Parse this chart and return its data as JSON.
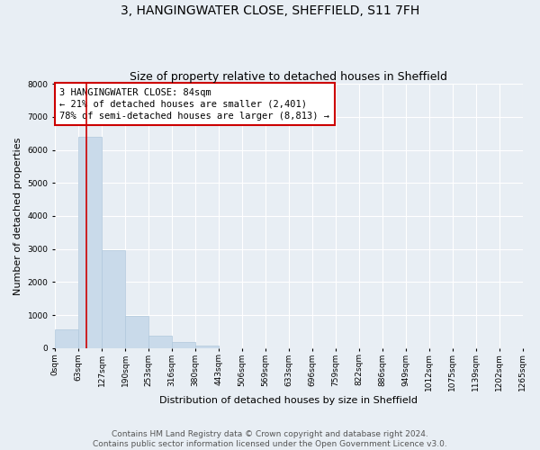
{
  "title": "3, HANGINGWATER CLOSE, SHEFFIELD, S11 7FH",
  "subtitle": "Size of property relative to detached houses in Sheffield",
  "xlabel": "Distribution of detached houses by size in Sheffield",
  "ylabel": "Number of detached properties",
  "bin_edges": [
    0,
    63,
    127,
    190,
    253,
    316,
    380,
    443,
    506,
    569,
    633,
    696,
    759,
    822,
    886,
    949,
    1012,
    1075,
    1139,
    1202,
    1265
  ],
  "bar_heights": [
    560,
    6400,
    2950,
    975,
    375,
    175,
    80,
    0,
    0,
    0,
    0,
    0,
    0,
    0,
    0,
    0,
    0,
    0,
    0,
    0
  ],
  "bar_color": "#c9daea",
  "bar_edgecolor": "#b0c8dc",
  "property_line_x": 84,
  "ylim": [
    0,
    8000
  ],
  "yticks": [
    0,
    1000,
    2000,
    3000,
    4000,
    5000,
    6000,
    7000,
    8000
  ],
  "annotation_box_text": "3 HANGINGWATER CLOSE: 84sqm\n← 21% of detached houses are smaller (2,401)\n78% of semi-detached houses are larger (8,813) →",
  "vline_color": "#cc0000",
  "box_edgecolor": "#cc0000",
  "footer_line1": "Contains HM Land Registry data © Crown copyright and database right 2024.",
  "footer_line2": "Contains public sector information licensed under the Open Government Licence v3.0.",
  "background_color": "#e8eef4",
  "grid_color": "#ffffff",
  "title_fontsize": 10,
  "subtitle_fontsize": 9,
  "tick_label_fontsize": 6.5,
  "axis_label_fontsize": 8,
  "annotation_fontsize": 7.5,
  "footer_fontsize": 6.5
}
